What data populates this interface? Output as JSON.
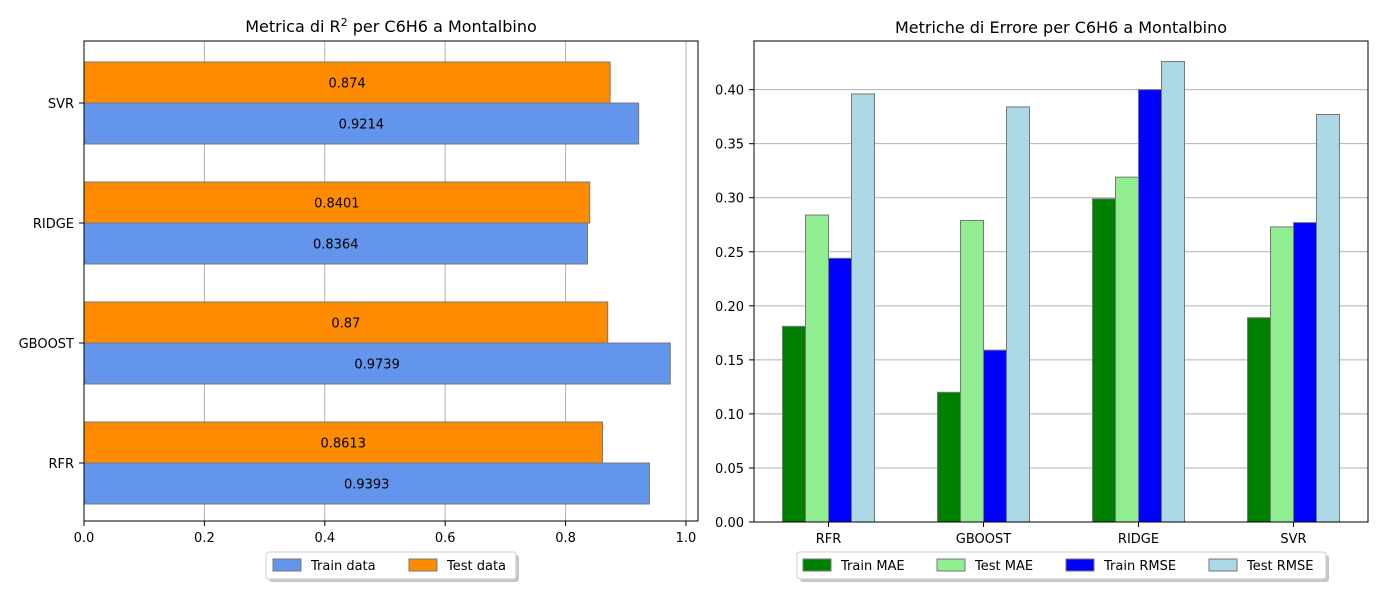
{
  "chart_data": [
    {
      "type": "bar",
      "orientation": "horizontal",
      "title_prefix": "Metrica di R",
      "title_sup": "2",
      "title_suffix": " per C6H6 a Montalbino",
      "categories": [
        "RFR",
        "GBOOST",
        "RIDGE",
        "SVR"
      ],
      "xlim": [
        0,
        1.02
      ],
      "xticks": [
        0.0,
        0.2,
        0.4,
        0.6,
        0.8,
        1.0
      ],
      "xtick_labels": [
        "0.0",
        "0.2",
        "0.4",
        "0.6",
        "0.8",
        "1.0"
      ],
      "grid": "x",
      "legend_position": "bottom-center",
      "series": [
        {
          "name": "Train data",
          "values": [
            0.9393,
            0.9739,
            0.8364,
            0.9214
          ],
          "labels": [
            "0.9393",
            "0.9739",
            "0.8364",
            "0.9214"
          ],
          "color": "#6495ed"
        },
        {
          "name": "Test data",
          "values": [
            0.8613,
            0.87,
            0.8401,
            0.874
          ],
          "labels": [
            "0.8613",
            "0.87",
            "0.8401",
            "0.874"
          ],
          "color": "#ff8c00"
        }
      ]
    },
    {
      "type": "bar",
      "orientation": "vertical",
      "title": "Metriche di Errore per C6H6 a Montalbino",
      "categories": [
        "RFR",
        "GBOOST",
        "RIDGE",
        "SVR"
      ],
      "ylim": [
        0,
        0.445
      ],
      "yticks": [
        0.0,
        0.05,
        0.1,
        0.15,
        0.2,
        0.25,
        0.3,
        0.35,
        0.4
      ],
      "ytick_labels": [
        "0.00",
        "0.05",
        "0.10",
        "0.15",
        "0.20",
        "0.25",
        "0.30",
        "0.35",
        "0.40"
      ],
      "grid": "y",
      "legend_position": "bottom-center",
      "series": [
        {
          "name": "Train MAE",
          "values": [
            0.181,
            0.12,
            0.299,
            0.189
          ],
          "color": "#008000"
        },
        {
          "name": "Test MAE",
          "values": [
            0.284,
            0.279,
            0.319,
            0.273
          ],
          "color": "#90ee90"
        },
        {
          "name": "Train RMSE",
          "values": [
            0.244,
            0.159,
            0.4,
            0.277
          ],
          "color": "#0000ff"
        },
        {
          "name": "Test RMSE",
          "values": [
            0.396,
            0.384,
            0.426,
            0.377
          ],
          "color": "#add8e6"
        }
      ]
    }
  ]
}
